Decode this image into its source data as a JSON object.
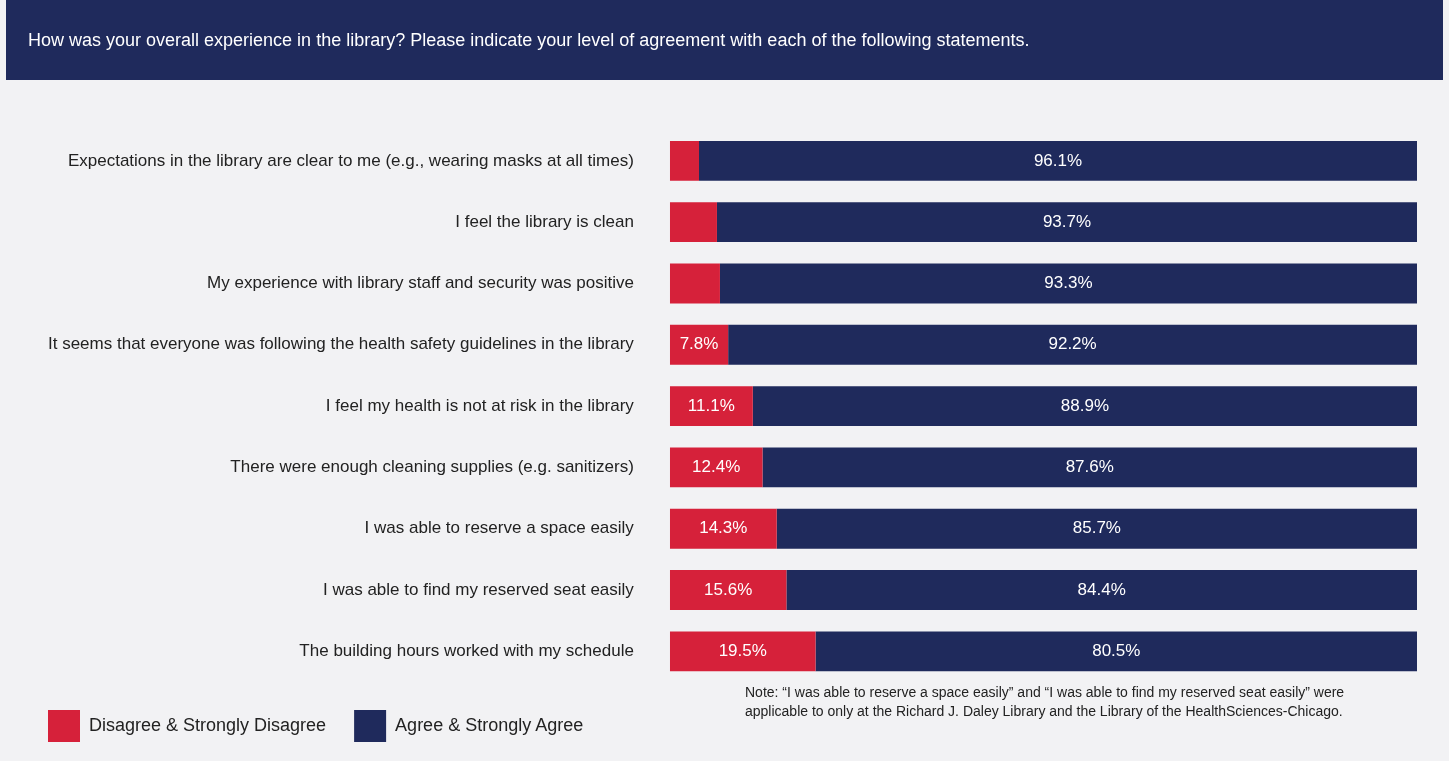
{
  "chart_data": {
    "type": "bar",
    "orientation": "horizontal",
    "stacked": true,
    "legend": "bottom left",
    "title": "How was your overall experience in the library? Please indicate your level of agreement with each of the following statements.",
    "categories": [
      "Expectations in the library are clear to me (e.g., wearing masks at all times)",
      "I feel the library is clean",
      "My experience with library staff and security was positive",
      "It seems that everyone was following the health safety guidelines in the library",
      "I feel my health is not at risk in the library",
      "There were enough cleaning supplies (e.g. sanitizers)",
      "I was able to reserve a space easily",
      "I was able to find my reserved seat easily",
      "The building hours worked with my schedule"
    ],
    "series": [
      {
        "name": "Disagree & Strongly Disagree",
        "color": "#d6213a",
        "values": [
          3.9,
          6.3,
          6.7,
          7.8,
          11.1,
          12.4,
          14.3,
          15.6,
          19.5
        ],
        "value_labels": [
          null,
          null,
          null,
          "7.8%",
          "11.1%",
          "12.4%",
          "14.3%",
          "15.6%",
          "19.5%"
        ]
      },
      {
        "name": "Agree & Strongly Agree",
        "color": "#1f2a5c",
        "values": [
          96.1,
          93.7,
          93.3,
          92.2,
          88.9,
          87.6,
          85.7,
          84.4,
          80.5
        ],
        "value_labels": [
          "96.1%",
          "93.7%",
          "93.3%",
          "92.2%",
          "88.9%",
          "87.6%",
          "85.7%",
          "84.4%",
          "80.5%"
        ]
      }
    ],
    "annotations": [
      "Note: “I was able to reserve a space easily” and “I was able to find my reserved seat easily” were applicable to only at the Richard J. Daley Library and the Library of the HealthSciences-Chicago."
    ]
  }
}
